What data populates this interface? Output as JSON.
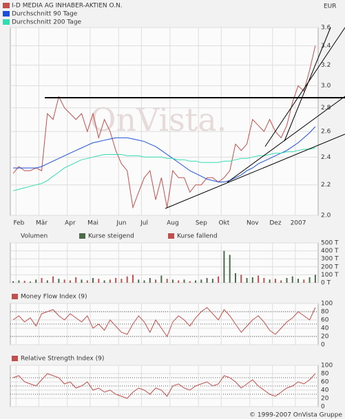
{
  "chart_data": [
    {
      "type": "line",
      "unit": "EUR",
      "watermark": "OnVista.",
      "log": true,
      "grid": true,
      "categories": [
        null,
        "Feb",
        null,
        null,
        null,
        "Mär",
        null,
        null,
        null,
        null,
        "Apr",
        null,
        null,
        null,
        "Mai",
        null,
        null,
        null,
        null,
        "Jun",
        null,
        null,
        null,
        "Jul",
        null,
        null,
        null,
        null,
        "Aug",
        null,
        null,
        null,
        null,
        "Sep",
        null,
        null,
        null,
        "Okt",
        null,
        null,
        null,
        null,
        "Nov",
        null,
        null,
        null,
        "Dez",
        null,
        null,
        null,
        "2007",
        null,
        null,
        null
      ],
      "series": [
        {
          "name": "I-D MEDIA AG INHABER-AKTIEN O.N.",
          "color": "#c0504d",
          "values": [
            2.28,
            2.33,
            2.3,
            2.3,
            2.32,
            2.3,
            2.75,
            2.7,
            2.9,
            2.8,
            2.75,
            2.7,
            2.75,
            2.6,
            2.75,
            2.55,
            2.7,
            2.6,
            2.45,
            2.35,
            2.3,
            2.05,
            2.15,
            2.25,
            2.3,
            2.1,
            2.25,
            2.05,
            2.3,
            2.25,
            2.25,
            2.15,
            2.2,
            2.2,
            2.25,
            2.25,
            2.22,
            2.25,
            2.3,
            2.5,
            2.45,
            2.5,
            2.7,
            2.65,
            2.6,
            2.7,
            2.6,
            2.55,
            2.65,
            2.85,
            3.0,
            2.95,
            3.15,
            3.4
          ]
        },
        {
          "name": "Durchschnitt 90 Tage",
          "color": "#1f4fd8",
          "values": [
            2.32,
            2.32,
            2.32,
            2.32,
            2.32,
            2.33,
            2.35,
            2.37,
            2.39,
            2.41,
            2.43,
            2.45,
            2.47,
            2.49,
            2.51,
            2.52,
            2.53,
            2.54,
            2.55,
            2.55,
            2.55,
            2.54,
            2.53,
            2.52,
            2.5,
            2.48,
            2.45,
            2.42,
            2.39,
            2.36,
            2.33,
            2.3,
            2.28,
            2.26,
            2.24,
            2.23,
            2.22,
            2.22,
            2.23,
            2.25,
            2.27,
            2.3,
            2.32,
            2.35,
            2.37,
            2.39,
            2.41,
            2.43,
            2.45,
            2.48,
            2.51,
            2.55,
            2.59,
            2.64
          ]
        },
        {
          "name": "Durchschnitt 200 Tage",
          "color": "#33dcb0",
          "values": [
            2.16,
            2.17,
            2.18,
            2.19,
            2.2,
            2.21,
            2.23,
            2.26,
            2.29,
            2.32,
            2.34,
            2.36,
            2.38,
            2.39,
            2.4,
            2.41,
            2.42,
            2.42,
            2.42,
            2.42,
            2.41,
            2.41,
            2.41,
            2.4,
            2.4,
            2.4,
            2.4,
            2.39,
            2.39,
            2.38,
            2.38,
            2.37,
            2.37,
            2.36,
            2.36,
            2.36,
            2.36,
            2.37,
            2.37,
            2.38,
            2.39,
            2.39,
            2.4,
            2.41,
            2.41,
            2.42,
            2.43,
            2.43,
            2.44,
            2.44,
            2.45,
            2.46,
            2.46,
            2.47
          ]
        }
      ],
      "ylim": [
        2.0,
        3.6
      ],
      "yticks": [
        {
          "value": 2,
          "label": "2.0"
        },
        2.2,
        2.4,
        2.6,
        2.8,
        {
          "value": 3,
          "label": "3.0"
        },
        3.2,
        3.4,
        3.6
      ]
    },
    {
      "type": "bar",
      "title": "Volumen",
      "legend": [
        {
          "name": "Kurse steigend",
          "color": "#4b6b4b"
        },
        {
          "name": "Kurse fallend",
          "color": "#c0504d"
        }
      ],
      "values": [
        20,
        30,
        25,
        15,
        40,
        60,
        30,
        80,
        50,
        40,
        30,
        70,
        40,
        30,
        60,
        50,
        30,
        40,
        60,
        50,
        80,
        100,
        40,
        30,
        60,
        40,
        90,
        50,
        40,
        30,
        40,
        20,
        30,
        40,
        60,
        50,
        80,
        400,
        350,
        120,
        100,
        60,
        70,
        90,
        60,
        40,
        50,
        30,
        60,
        80,
        50,
        40,
        70,
        100
      ],
      "ylim": [
        0,
        500
      ],
      "yticks": [
        {
          "value": 0,
          "label": "0 T"
        },
        {
          "value": 100,
          "label": "100 T"
        },
        {
          "value": 200,
          "label": "200 T"
        },
        {
          "value": 300,
          "label": "300 T"
        },
        {
          "value": 400,
          "label": "400 T"
        },
        {
          "value": 500,
          "label": "500 T"
        }
      ]
    },
    {
      "type": "line",
      "title": "Money Flow Index (9)",
      "color": "#c0504d",
      "values": [
        60,
        70,
        55,
        65,
        45,
        75,
        80,
        85,
        70,
        60,
        75,
        65,
        55,
        70,
        40,
        50,
        35,
        60,
        45,
        30,
        25,
        50,
        70,
        55,
        30,
        60,
        40,
        20,
        55,
        70,
        60,
        45,
        65,
        80,
        90,
        75,
        60,
        85,
        70,
        50,
        30,
        45,
        60,
        70,
        55,
        35,
        25,
        40,
        55,
        65,
        80,
        70,
        60,
        90
      ],
      "ylim": [
        0,
        100
      ],
      "yticks": [
        0,
        20,
        40,
        60,
        80,
        100
      ],
      "guides": [
        20,
        50,
        80
      ]
    },
    {
      "type": "line",
      "title": "Relative Strength Index (9)",
      "color": "#c0504d",
      "values": [
        70,
        75,
        60,
        55,
        50,
        65,
        80,
        75,
        70,
        55,
        60,
        45,
        50,
        60,
        40,
        45,
        35,
        40,
        30,
        25,
        20,
        35,
        45,
        40,
        30,
        45,
        40,
        25,
        50,
        55,
        45,
        40,
        50,
        55,
        60,
        50,
        55,
        75,
        70,
        60,
        45,
        55,
        65,
        50,
        40,
        30,
        25,
        35,
        45,
        50,
        60,
        55,
        65,
        80
      ],
      "ylim": [
        0,
        100
      ],
      "yticks": [
        0,
        20,
        40,
        60,
        80,
        100
      ],
      "guides": [
        30,
        50,
        70
      ]
    }
  ],
  "footer": "© 1999-2007 OnVista Gruppe"
}
